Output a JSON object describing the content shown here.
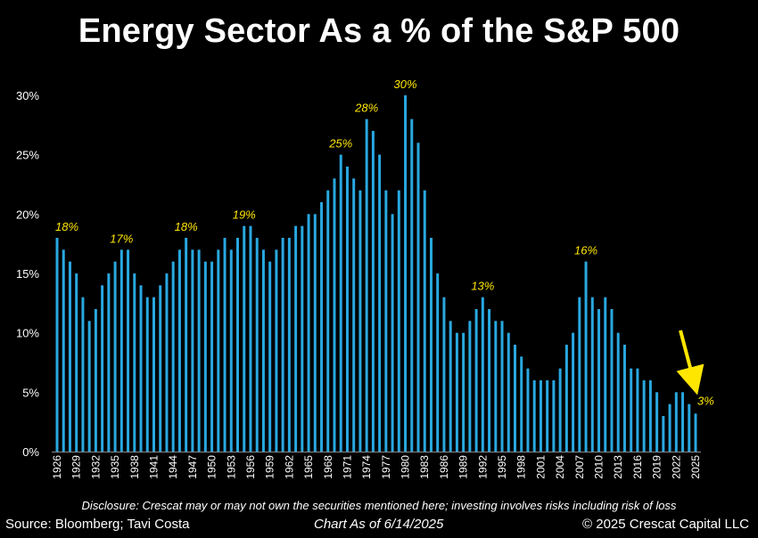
{
  "header": {
    "title": "Energy Sector As a % of the S&P 500"
  },
  "footer": {
    "disclosure": "Disclosure: Crescat may or may not own the securities mentioned here; investing involves risks including risk of loss",
    "source": "Source: Bloomberg; Tavi Costa",
    "chart_date": "Chart As of 6/14/2025",
    "copyright": "© 2025 Crescat Capital LLC"
  },
  "colors": {
    "background": "#000000",
    "bar": "#29A8E0",
    "annotation": "#FFE600",
    "text": "#FFFFFF",
    "axis": "#888888"
  },
  "chart_data": {
    "type": "bar",
    "title": "Energy Sector As a % of the S&P 500",
    "xlabel": "",
    "ylabel": "",
    "ylim": [
      0,
      30
    ],
    "yticks": [
      0,
      5,
      10,
      15,
      20,
      25,
      30
    ],
    "ytick_labels": [
      "0%",
      "5%",
      "10%",
      "15%",
      "20%",
      "25%",
      "30%"
    ],
    "xtick_labels": [
      "1926",
      "1929",
      "1932",
      "1935",
      "1938",
      "1941",
      "1944",
      "1947",
      "1950",
      "1953",
      "1956",
      "1959",
      "1962",
      "1965",
      "1968",
      "1971",
      "1974",
      "1977",
      "1980",
      "1983",
      "1986",
      "1989",
      "1992",
      "1995",
      "1998",
      "2001",
      "2004",
      "2007",
      "2010",
      "2013",
      "2016",
      "2019",
      "2022",
      "2025"
    ],
    "categories": [
      "1926",
      "1927",
      "1928",
      "1929",
      "1930",
      "1931",
      "1932",
      "1933",
      "1934",
      "1935",
      "1936",
      "1937",
      "1938",
      "1939",
      "1940",
      "1941",
      "1942",
      "1943",
      "1944",
      "1945",
      "1946",
      "1947",
      "1948",
      "1949",
      "1950",
      "1951",
      "1952",
      "1953",
      "1954",
      "1955",
      "1956",
      "1957",
      "1958",
      "1959",
      "1960",
      "1961",
      "1962",
      "1963",
      "1964",
      "1965",
      "1966",
      "1967",
      "1968",
      "1969",
      "1970",
      "1971",
      "1972",
      "1973",
      "1974",
      "1975",
      "1976",
      "1977",
      "1978",
      "1979",
      "1980",
      "1981",
      "1982",
      "1983",
      "1984",
      "1985",
      "1986",
      "1987",
      "1988",
      "1989",
      "1990",
      "1991",
      "1992",
      "1993",
      "1994",
      "1995",
      "1996",
      "1997",
      "1998",
      "1999",
      "2000",
      "2001",
      "2002",
      "2003",
      "2004",
      "2005",
      "2006",
      "2007",
      "2008",
      "2009",
      "2010",
      "2011",
      "2012",
      "2013",
      "2014",
      "2015",
      "2016",
      "2017",
      "2018",
      "2019",
      "2020",
      "2021",
      "2022",
      "2023",
      "2024",
      "2025"
    ],
    "values": [
      18,
      17,
      16,
      15,
      13,
      11,
      12,
      14,
      15,
      16,
      17,
      17,
      15,
      14,
      13,
      13,
      14,
      15,
      16,
      17,
      18,
      17,
      17,
      16,
      16,
      17,
      18,
      17,
      18,
      19,
      19,
      18,
      17,
      16,
      17,
      18,
      18,
      19,
      19,
      20,
      20,
      21,
      22,
      23,
      25,
      24,
      23,
      22,
      28,
      27,
      25,
      22,
      20,
      22,
      30,
      28,
      26,
      22,
      18,
      15,
      13,
      11,
      10,
      10,
      11,
      12,
      13,
      12,
      11,
      11,
      10,
      9,
      8,
      7,
      6,
      6,
      6,
      6,
      7,
      9,
      10,
      13,
      16,
      13,
      12,
      13,
      12,
      10,
      9,
      7,
      7,
      6,
      6,
      5,
      3,
      4,
      5,
      5,
      4,
      3.2
    ],
    "annotations": [
      {
        "year": "1926",
        "label": "18%"
      },
      {
        "year": "1936",
        "label": "17%"
      },
      {
        "year": "1946",
        "label": "18%"
      },
      {
        "year": "1955",
        "label": "19%"
      },
      {
        "year": "1970",
        "label": "25%"
      },
      {
        "year": "1974",
        "label": "28%"
      },
      {
        "year": "1980",
        "label": "30%"
      },
      {
        "year": "1992",
        "label": "13%"
      },
      {
        "year": "2008",
        "label": "16%"
      },
      {
        "year": "2025",
        "label": "3%"
      }
    ],
    "grid": false,
    "legend": "none"
  }
}
